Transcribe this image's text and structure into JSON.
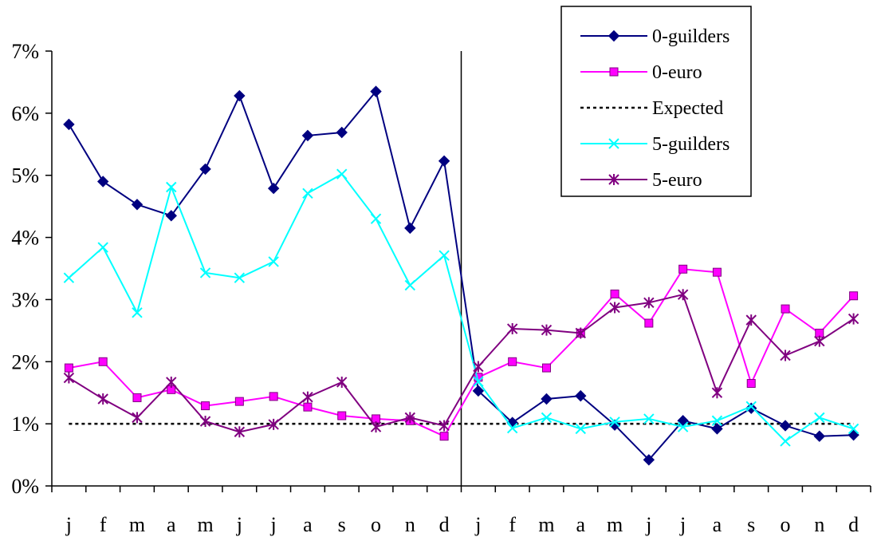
{
  "chart_data": {
    "type": "line",
    "title": "",
    "xlabel": "",
    "ylabel": "",
    "categories": [
      "j",
      "f",
      "m",
      "a",
      "m",
      "j",
      "j",
      "a",
      "s",
      "o",
      "n",
      "d",
      "j",
      "f",
      "m",
      "a",
      "m",
      "j",
      "j",
      "a",
      "s",
      "o",
      "n",
      "d"
    ],
    "yticks": [
      "0%",
      "1%",
      "2%",
      "3%",
      "4%",
      "5%",
      "6%",
      "7%"
    ],
    "ylim": [
      0,
      7
    ],
    "divider_after_index": 11,
    "legend_position": "top-right",
    "grid": false,
    "series": [
      {
        "name": "0-guilders",
        "color": "#000080",
        "marker": "diamond",
        "values": [
          5.82,
          4.9,
          4.53,
          4.35,
          5.1,
          6.28,
          4.79,
          5.64,
          5.69,
          6.35,
          4.15,
          5.23,
          1.53,
          1.02,
          1.4,
          1.45,
          0.98,
          0.42,
          1.05,
          0.92,
          1.25,
          0.97,
          0.8,
          0.82
        ]
      },
      {
        "name": "0-euro",
        "color": "#FF00FF",
        "marker": "square",
        "values": [
          1.9,
          2.0,
          1.42,
          1.55,
          1.29,
          1.36,
          1.44,
          1.27,
          1.13,
          1.08,
          1.05,
          0.8,
          1.75,
          2.0,
          1.9,
          2.46,
          3.09,
          2.62,
          3.49,
          3.44,
          1.65,
          2.85,
          2.46,
          3.06
        ]
      },
      {
        "name": "Expected",
        "color": "#000000",
        "marker": "none",
        "dashed": true,
        "values": [
          1,
          1,
          1,
          1,
          1,
          1,
          1,
          1,
          1,
          1,
          1,
          1,
          1,
          1,
          1,
          1,
          1,
          1,
          1,
          1,
          1,
          1,
          1,
          1
        ]
      },
      {
        "name": "5-guilders",
        "color": "#00FFFF",
        "marker": "x",
        "values": [
          3.35,
          3.84,
          2.79,
          4.81,
          3.43,
          3.35,
          3.61,
          4.71,
          5.02,
          4.3,
          3.23,
          3.71,
          1.68,
          0.93,
          1.1,
          0.92,
          1.03,
          1.08,
          0.95,
          1.05,
          1.28,
          0.72,
          1.1,
          0.92
        ]
      },
      {
        "name": "5-euro",
        "color": "#800080",
        "marker": "star",
        "values": [
          1.74,
          1.4,
          1.1,
          1.67,
          1.04,
          0.87,
          0.99,
          1.43,
          1.67,
          0.95,
          1.1,
          0.97,
          1.92,
          2.53,
          2.51,
          2.46,
          2.87,
          2.95,
          3.08,
          1.5,
          2.67,
          2.1,
          2.33,
          2.69
        ]
      }
    ]
  }
}
